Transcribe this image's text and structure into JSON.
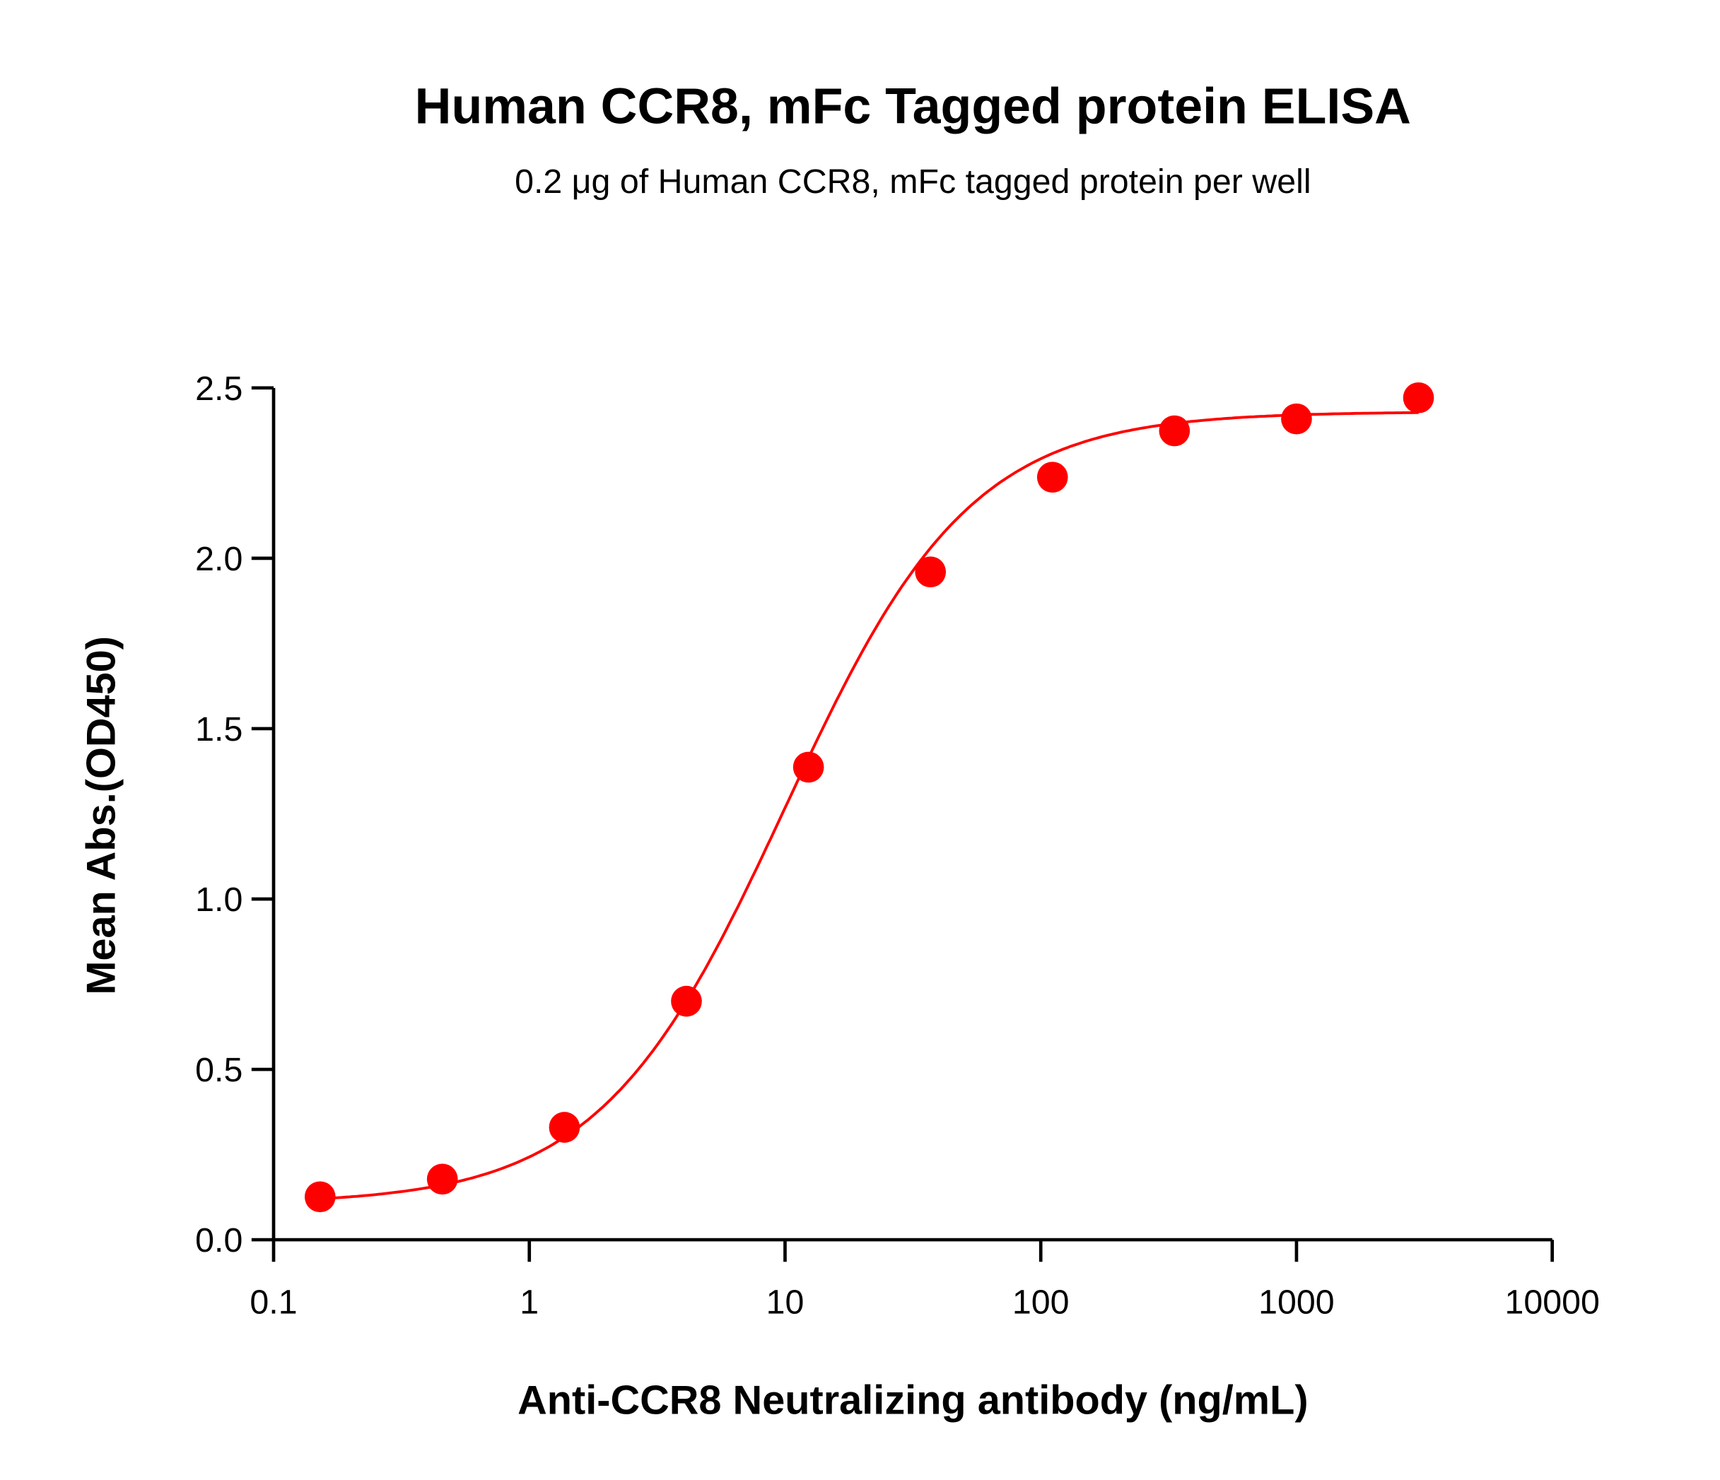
{
  "chart_data": {
    "type": "scatter",
    "title": "Human CCR8, mFc Tagged protein ELISA",
    "subtitle": "0.2 μg of Human CCR8, mFc tagged protein per well",
    "xlabel": "Anti-CCR8 Neutralizing antibody (ng/mL)",
    "ylabel": "Mean Abs.(OD450)",
    "x_scale": "log",
    "xlim": [
      0.1,
      10000
    ],
    "ylim": [
      0,
      2.5
    ],
    "x_ticks": [
      "0.1",
      "1",
      "10",
      "100",
      "1000",
      "10000"
    ],
    "y_ticks": [
      "0.0",
      "0.5",
      "1.0",
      "1.5",
      "2.0",
      "2.5"
    ],
    "grid": false,
    "color": "#ff0000",
    "fit_curve": "sigmoidal (4PL)",
    "series": [
      {
        "x": [
          0.152,
          0.457,
          1.372,
          4.115,
          12.35,
          37.04,
          111.1,
          333.3,
          1000,
          3000
        ],
        "y": [
          0.126,
          0.178,
          0.33,
          0.7,
          1.387,
          1.96,
          2.238,
          2.374,
          2.409,
          2.471
        ]
      }
    ]
  }
}
